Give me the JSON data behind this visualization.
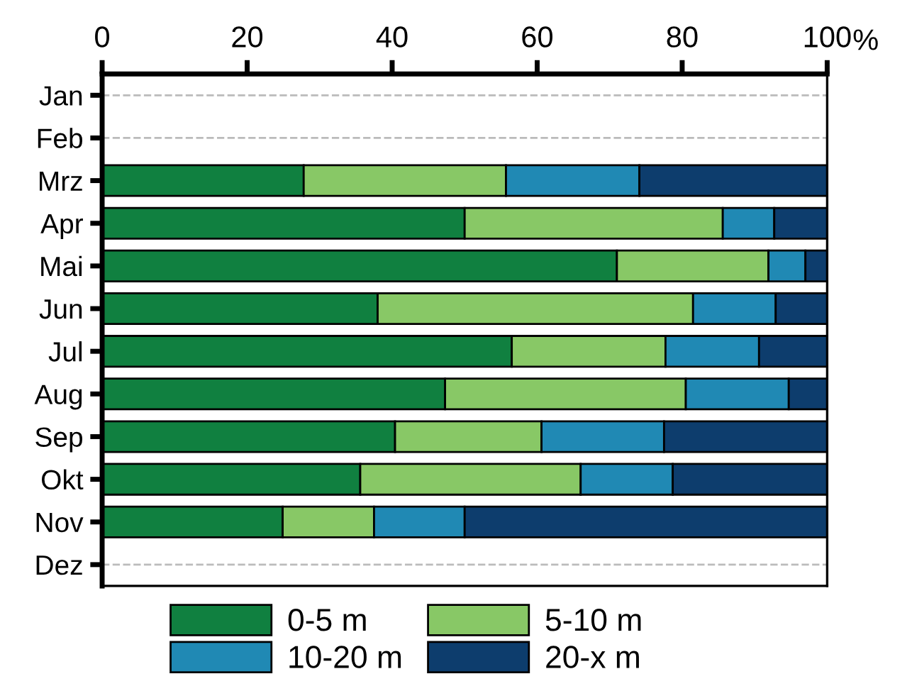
{
  "chart_data": {
    "type": "bar",
    "orientation": "horizontal",
    "stacked": true,
    "categories": [
      "Jan",
      "Feb",
      "Mrz",
      "Apr",
      "Mai",
      "Jun",
      "Jul",
      "Aug",
      "Sep",
      "Okt",
      "Nov",
      "Dez"
    ],
    "series": [
      {
        "name": "0-5 m",
        "color": "#108040",
        "values": [
          null,
          null,
          27.8,
          50.0,
          71.0,
          38.0,
          56.5,
          47.3,
          40.4,
          35.6,
          24.9,
          null
        ]
      },
      {
        "name": "5-10 m",
        "color": "#88c866",
        "values": [
          null,
          null,
          27.9,
          35.6,
          20.9,
          43.5,
          21.2,
          33.2,
          20.2,
          30.4,
          12.6,
          null
        ]
      },
      {
        "name": "10-20 m",
        "color": "#2089b4",
        "values": [
          null,
          null,
          18.4,
          7.1,
          5.1,
          11.4,
          12.9,
          14.2,
          16.9,
          12.7,
          12.5,
          null
        ]
      },
      {
        "name": "20-x m",
        "color": "#0d3d6d",
        "values": [
          null,
          null,
          25.9,
          7.3,
          3.0,
          7.1,
          9.4,
          5.3,
          22.5,
          21.3,
          50.0,
          null
        ]
      }
    ],
    "xlabel": "%",
    "xlim": [
      0,
      100
    ],
    "xticks": [
      0,
      20,
      40,
      60,
      80,
      100
    ],
    "grid": "y",
    "legend": "bottom"
  }
}
